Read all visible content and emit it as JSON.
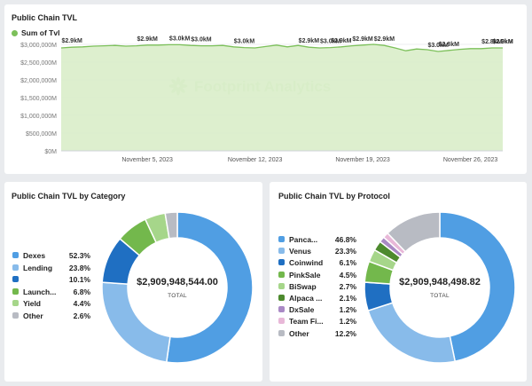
{
  "panels": {
    "tvl": {
      "title": "Public Chain TVL",
      "legend_label": "Sum of Tvl",
      "series_color": "#7cc05a",
      "fill_color": "#d9edc9",
      "watermark": "Footprint Analytics"
    },
    "category": {
      "title": "Public Chain TVL by Category",
      "total_value": "$2,909,948,544.00",
      "total_label": "TOTAL"
    },
    "protocol": {
      "title": "Public Chain TVL by Protocol",
      "total_value": "$2,909,948,498.82",
      "total_label": "TOTAL"
    }
  },
  "chart_data": [
    {
      "type": "area",
      "title": "Public Chain TVL",
      "series": [
        {
          "name": "Sum of Tvl",
          "values": [
            2.9,
            2.92,
            2.93,
            2.95,
            2.96,
            2.97,
            2.95,
            2.96,
            2.98,
            2.98,
            2.99,
            2.99,
            2.97,
            2.96,
            2.96,
            2.97,
            2.93,
            2.91,
            2.9,
            2.94,
            2.98,
            2.93,
            2.97,
            2.92,
            2.9,
            2.91,
            2.93,
            2.96,
            2.98,
            3.0,
            2.97,
            2.9,
            2.82,
            2.87,
            2.85,
            2.8,
            2.83,
            2.86,
            2.88,
            2.88,
            2.9,
            2.9
          ]
        }
      ],
      "data_labels": [
        {
          "index": 1,
          "text": "$2.9kM"
        },
        {
          "index": 8,
          "text": "$2.9kM"
        },
        {
          "index": 11,
          "text": "$3.0kM"
        },
        {
          "index": 13,
          "text": "$3.0kM"
        },
        {
          "index": 17,
          "text": "$3.0kM"
        },
        {
          "index": 23,
          "text": "$2.9kM"
        },
        {
          "index": 25,
          "text": "$3.0kM"
        },
        {
          "index": 26,
          "text": "$2.9kM"
        },
        {
          "index": 28,
          "text": "$2.9kM"
        },
        {
          "index": 30,
          "text": "$2.9kM"
        },
        {
          "index": 35,
          "text": "$3.0kM"
        },
        {
          "index": 36,
          "text": "$2.8kM"
        },
        {
          "index": 40,
          "text": "$2.8kM"
        },
        {
          "index": 43,
          "text": "$2.9kM"
        },
        {
          "index": 44,
          "text": "$2.9kM"
        }
      ],
      "ylim": [
        0,
        3000
      ],
      "ytick_values": [
        0,
        500,
        1000,
        1500,
        2000,
        2500,
        3000
      ],
      "ytick_labels": [
        "$0M",
        "$500,000M",
        "$1,000,000M",
        "$1,500,000M",
        "$2,000,000M",
        "$2,500,000M",
        "$3,000,000M"
      ],
      "xtick_labels": [
        {
          "index": 8,
          "text": "November 5, 2023"
        },
        {
          "index": 18,
          "text": "November 12, 2023"
        },
        {
          "index": 28,
          "text": "November 19, 2023"
        },
        {
          "index": 38,
          "text": "November 26, 2023"
        }
      ],
      "legend_position": "top-left",
      "grid": true
    },
    {
      "type": "pie",
      "title": "Public Chain TVL by Category",
      "labels": [
        "Dexes",
        "Lending",
        "",
        "Launch...",
        "Yield",
        "Other"
      ],
      "values": [
        52.3,
        23.8,
        10.1,
        6.8,
        4.4,
        2.6
      ],
      "value_labels": [
        "52.3%",
        "23.8%",
        "10.1%",
        "6.8%",
        "4.4%",
        "2.6%"
      ],
      "colors": [
        "#509ee3",
        "#88bbea",
        "#1f6fc2",
        "#73b84c",
        "#a6d68a",
        "#b8bbc3"
      ],
      "total": "$2,909,948,544.00",
      "legend_position": "left"
    },
    {
      "type": "pie",
      "title": "Public Chain TVL by Protocol",
      "labels": [
        "Panca...",
        "Venus",
        "Coinwind",
        "PinkSale",
        "BiSwap",
        "Alpaca ...",
        "DxSale",
        "Team Fi...",
        "Other"
      ],
      "values": [
        46.8,
        23.3,
        6.1,
        4.5,
        2.7,
        2.1,
        1.2,
        1.2,
        12.2
      ],
      "value_labels": [
        "46.8%",
        "23.3%",
        "6.1%",
        "4.5%",
        "2.7%",
        "2.1%",
        "1.2%",
        "1.2%",
        "12.2%"
      ],
      "colors": [
        "#509ee3",
        "#88bbea",
        "#1f6fc2",
        "#73b84c",
        "#a6d68a",
        "#4d8a2e",
        "#a989c5",
        "#e8b8d8",
        "#b8bbc3"
      ],
      "total": "$2,909,948,498.82",
      "legend_position": "left"
    }
  ]
}
